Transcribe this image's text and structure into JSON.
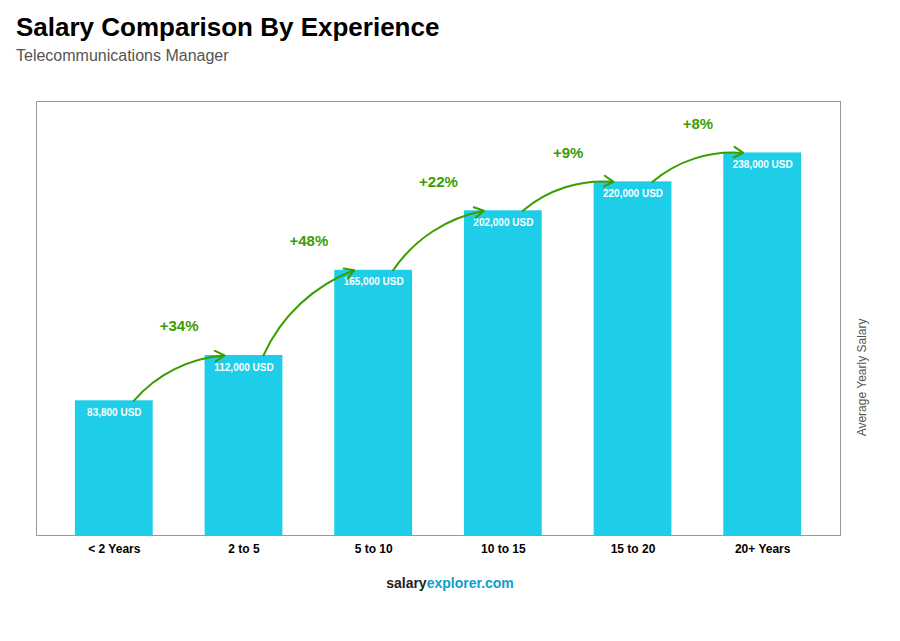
{
  "chart_data": {
    "type": "bar",
    "title": "Salary Comparison By Experience",
    "subtitle": "Telecommunications Manager",
    "y_label": "Average Yearly Salary",
    "categories": [
      "< 2 Years",
      "2 to 5",
      "5 to 10",
      "10 to 15",
      "15 to 20",
      "20+ Years"
    ],
    "values": [
      83800,
      112000,
      165000,
      202000,
      220000,
      238000
    ],
    "value_labels": [
      "83,800 USD",
      "112,000 USD",
      "165,000 USD",
      "202,000 USD",
      "220,000 USD",
      "238,000 USD"
    ],
    "data_labels": true,
    "annotations": [
      "+34%",
      "+48%",
      "+22%",
      "+9%",
      "+8%"
    ],
    "footer": [
      "salary",
      "explorer.com"
    ],
    "color": "#1ECDE8",
    "ylim": [
      0,
      270000
    ],
    "tick_labels": "x",
    "grid": false
  }
}
